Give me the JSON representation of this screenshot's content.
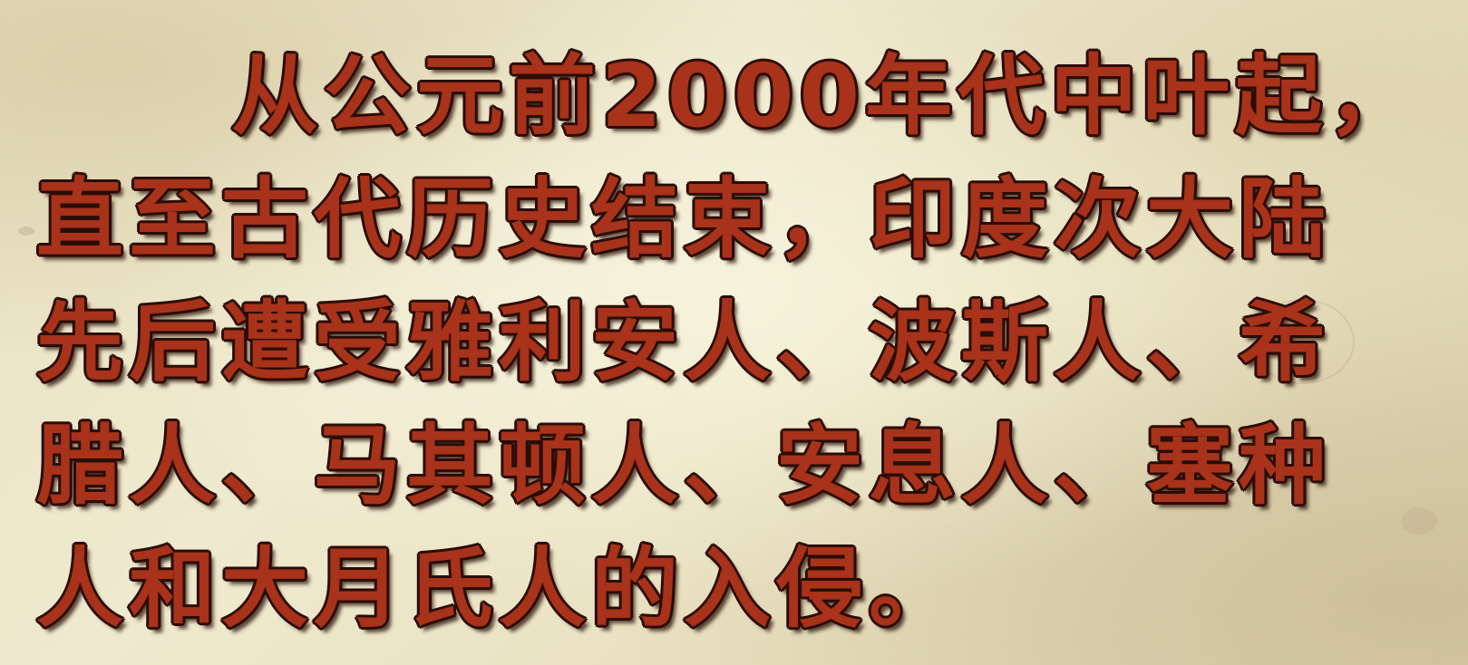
{
  "caption": {
    "lines": [
      "从公元前2000年代中叶起，",
      "直至古代历史结束，印度次大陆",
      "先后遭受雅利安人、波斯人、希",
      "腊人、马其顿人、安息人、塞种",
      "人和大月氏人的入侵。"
    ]
  },
  "colors": {
    "text": "#a8321a",
    "outline": "#2a0d05",
    "background": "#e9e2c2"
  }
}
